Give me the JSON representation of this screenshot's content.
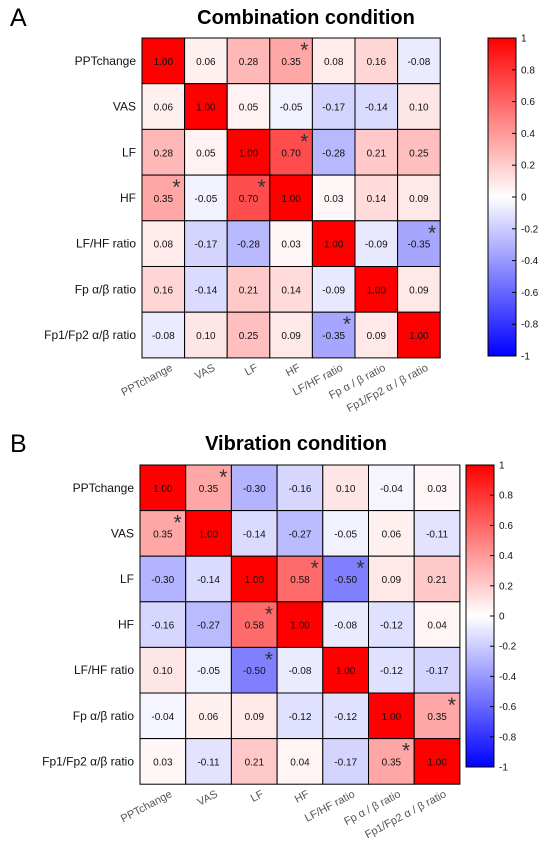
{
  "chart_data": [
    {
      "type": "heatmap",
      "panel_label": "A",
      "title": "Combination condition",
      "labels": [
        "PPTchange",
        "VAS",
        "LF",
        "HF",
        "LF/HF ratio",
        "Fp α/β ratio",
        "Fp1/Fp2 α/β ratio"
      ],
      "col_labels": [
        "PPTchange",
        "VAS",
        "LF",
        "HF",
        "LF/HF ratio",
        "Fp α / β ratio",
        "Fp1/Fp2 α / β ratio"
      ],
      "matrix": [
        [
          "1.00",
          "0.06",
          "0.28",
          "0.35",
          "0.08",
          "0.16",
          "-0.08"
        ],
        [
          "0.06",
          "1.00",
          "0.05",
          "-0.05",
          "-0.17",
          "-0.14",
          "0.10"
        ],
        [
          "0.28",
          "0.05",
          "1.00",
          "0.70",
          "-0.28",
          "0.21",
          "0.25"
        ],
        [
          "0.35",
          "-0.05",
          "0.70",
          "1.00",
          "0.03",
          "0.14",
          "0.09"
        ],
        [
          "0.08",
          "-0.17",
          "-0.28",
          "0.03",
          "1.00",
          "-0.09",
          "-0.35"
        ],
        [
          "0.16",
          "-0.14",
          "0.21",
          "0.14",
          "-0.09",
          "1.00",
          "0.09"
        ],
        [
          "-0.08",
          "0.10",
          "0.25",
          "0.09",
          "-0.35",
          "0.09",
          "1.00"
        ]
      ],
      "significant": [
        [
          0,
          3
        ],
        [
          2,
          3
        ],
        [
          3,
          0
        ],
        [
          3,
          2
        ],
        [
          4,
          6
        ],
        [
          6,
          4
        ]
      ],
      "significance_marker": "*",
      "colorbar": {
        "range": [
          -1,
          1
        ],
        "ticks": [
          "1",
          "0.8",
          "0.6",
          "0.4",
          "0.2",
          "0",
          "-0.2",
          "-0.4",
          "-0.6",
          "-0.8",
          "-1"
        ]
      },
      "colormap": {
        "negative": "#0000ff",
        "zero": "#ffffff",
        "positive": "#ff0000"
      }
    },
    {
      "type": "heatmap",
      "panel_label": "B",
      "title": "Vibration condition",
      "labels": [
        "PPTchange",
        "VAS",
        "LF",
        "HF",
        "LF/HF ratio",
        "Fp α/β ratio",
        "Fp1/Fp2 α/β ratio"
      ],
      "col_labels": [
        "PPTchange",
        "VAS",
        "LF",
        "HF",
        "LF/HF ratio",
        "Fp α / β ratio",
        "Fp1/Fp2 α / β ratio"
      ],
      "matrix": [
        [
          "1.00",
          "0.35",
          "-0.30",
          "-0.16",
          "0.10",
          "-0.04",
          "0.03"
        ],
        [
          "0.35",
          "1.00",
          "-0.14",
          "-0.27",
          "-0.05",
          "0.06",
          "-0.11"
        ],
        [
          "-0.30",
          "-0.14",
          "1.00",
          "0.58",
          "-0.50",
          "0.09",
          "0.21"
        ],
        [
          "-0.16",
          "-0.27",
          "0.58",
          "1.00",
          "-0.08",
          "-0.12",
          "0.04"
        ],
        [
          "0.10",
          "-0.05",
          "-0.50",
          "-0.08",
          "1.00",
          "-0.12",
          "-0.17"
        ],
        [
          "-0.04",
          "0.06",
          "0.09",
          "-0.12",
          "-0.12",
          "1.00",
          "0.35"
        ],
        [
          "0.03",
          "-0.11",
          "0.21",
          "0.04",
          "-0.17",
          "0.35",
          "1.00"
        ]
      ],
      "significant": [
        [
          0,
          1
        ],
        [
          1,
          0
        ],
        [
          2,
          3
        ],
        [
          2,
          4
        ],
        [
          3,
          2
        ],
        [
          4,
          2
        ],
        [
          5,
          6
        ],
        [
          6,
          5
        ]
      ],
      "significance_marker": "*",
      "colorbar": {
        "range": [
          -1,
          1
        ],
        "ticks": [
          "1",
          "0.8",
          "0.6",
          "0.4",
          "0.2",
          "0",
          "-0.2",
          "-0.4",
          "-0.6",
          "-0.8",
          "-1"
        ]
      },
      "colormap": {
        "negative": "#0000ff",
        "zero": "#ffffff",
        "positive": "#ff0000"
      }
    }
  ]
}
